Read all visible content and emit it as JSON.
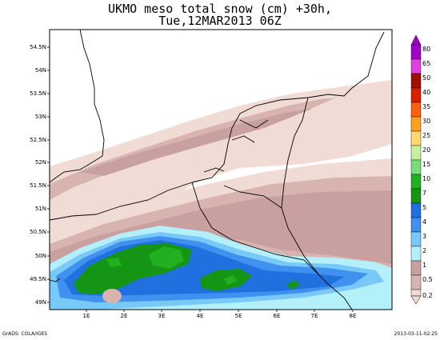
{
  "title": {
    "line1": "UKMO meso total snow (cm) +30h,",
    "line2": "Tue,12MAR2013 06Z"
  },
  "map": {
    "lat_labels": [
      "54.5N",
      "54N",
      "53.5N",
      "53N",
      "52.5N",
      "52N",
      "51.5N",
      "51N",
      "50.5N",
      "50N",
      "49.5N",
      "49N"
    ],
    "lon_labels": [
      "1E",
      "2E",
      "3E",
      "4E",
      "5E",
      "6E",
      "7E",
      "8E"
    ]
  },
  "colorbar": {
    "levels": [
      "80",
      "65",
      "50",
      "40",
      "35",
      "30",
      "25",
      "20",
      "15",
      "10",
      "7",
      "5",
      "4",
      "3",
      "2",
      "1",
      "0.5",
      "0.2"
    ],
    "colors": [
      "#a000c8",
      "#e040e0",
      "#a01000",
      "#d82000",
      "#ff6010",
      "#ffa020",
      "#ffd870",
      "#c8f0a0",
      "#78dc78",
      "#20b020",
      "#149614",
      "#2070e0",
      "#4090f0",
      "#78c8f8",
      "#b4f0fa",
      "#c8a0a0",
      "#d8b4b0",
      "#f0dcd4"
    ]
  },
  "credit": "GrADS: COLA/IGES",
  "timestamp": "2013-03-11-02:25"
}
